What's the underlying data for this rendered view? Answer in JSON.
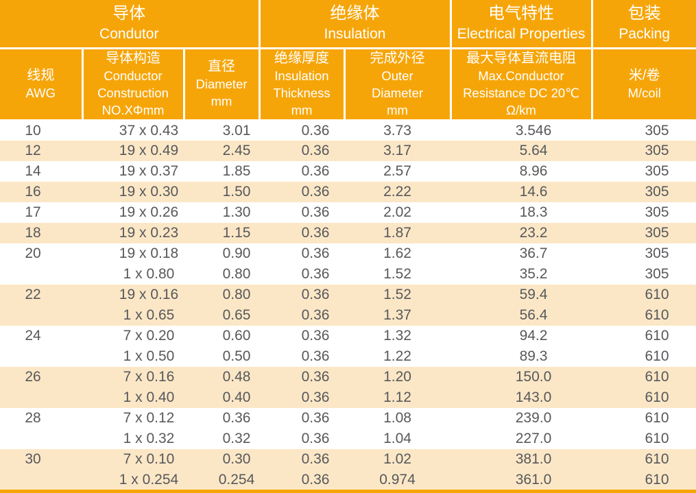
{
  "header": {
    "groups": [
      {
        "zh": "导体",
        "en": "Condutor"
      },
      {
        "zh": "绝缘体",
        "en": "Insulation"
      },
      {
        "zh": "电气特性",
        "en": "Electrical Properties"
      },
      {
        "zh": "包装",
        "en": "Packing"
      }
    ],
    "columns": [
      {
        "id": "awg",
        "lines": [
          "线规",
          "AWG"
        ]
      },
      {
        "id": "construction",
        "lines": [
          "导体构造",
          "Conductor",
          "Construction",
          "NO.XΦmm"
        ]
      },
      {
        "id": "diameter",
        "lines": [
          "直径",
          "Diameter",
          "mm"
        ]
      },
      {
        "id": "insulation_thickness",
        "lines": [
          "绝缘厚度",
          "Insulation",
          "Thickness",
          "mm"
        ]
      },
      {
        "id": "outer_diameter",
        "lines": [
          "完成外径",
          "Outer",
          "Diameter",
          "mm"
        ]
      },
      {
        "id": "resistance",
        "lines": [
          "最大导体直流电阻",
          "Max.Conductor",
          "Resistance DC 20℃",
          "Ω/km"
        ]
      },
      {
        "id": "m_per_coil",
        "lines": [
          "米/卷",
          "M/coil"
        ]
      }
    ]
  },
  "table": {
    "field_names": [
      "awg",
      "construction",
      "diameter",
      "insulation_thickness",
      "outer_diameter",
      "resistance",
      "m_per_coil"
    ],
    "rows": [
      {
        "stripe": false,
        "cells": [
          "10",
          "37 x 0.43",
          "3.01",
          "0.36",
          "3.73",
          "3.546",
          "305"
        ]
      },
      {
        "stripe": true,
        "cells": [
          "12",
          "19 x 0.49",
          "2.45",
          "0.36",
          "3.17",
          "5.64",
          "305"
        ]
      },
      {
        "stripe": false,
        "cells": [
          "14",
          "19 x 0.37",
          "1.85",
          "0.36",
          "2.57",
          "8.96",
          "305"
        ]
      },
      {
        "stripe": true,
        "cells": [
          "16",
          "19 x 0.30",
          "1.50",
          "0.36",
          "2.22",
          "14.6",
          "305"
        ]
      },
      {
        "stripe": false,
        "cells": [
          "17",
          "19 x 0.26",
          "1.30",
          "0.36",
          "2.02",
          "18.3",
          "305"
        ]
      },
      {
        "stripe": true,
        "cells": [
          "18",
          "19 x 0.23",
          "1.15",
          "0.36",
          "1.87",
          "23.2",
          "305"
        ]
      },
      {
        "stripe": false,
        "cells": [
          "20",
          "19 x 0.18",
          "0.90",
          "0.36",
          "1.62",
          "36.7",
          "305"
        ]
      },
      {
        "stripe": false,
        "cells": [
          "",
          "1 x 0.80",
          "0.80",
          "0.36",
          "1.52",
          "35.2",
          "305"
        ]
      },
      {
        "stripe": true,
        "cells": [
          "22",
          "19 x 0.16",
          "0.80",
          "0.36",
          "1.52",
          "59.4",
          "610"
        ]
      },
      {
        "stripe": true,
        "cells": [
          "",
          "1 x 0.65",
          "0.65",
          "0.36",
          "1.37",
          "56.4",
          "610"
        ]
      },
      {
        "stripe": false,
        "cells": [
          "24",
          "7 x 0.20",
          "0.60",
          "0.36",
          "1.32",
          "94.2",
          "610"
        ]
      },
      {
        "stripe": false,
        "cells": [
          "",
          "1 x 0.50",
          "0.50",
          "0.36",
          "1.22",
          "89.3",
          "610"
        ]
      },
      {
        "stripe": true,
        "cells": [
          "26",
          "7 x 0.16",
          "0.48",
          "0.36",
          "1.20",
          "150.0",
          "610"
        ]
      },
      {
        "stripe": true,
        "cells": [
          "",
          "1 x 0.40",
          "0.40",
          "0.36",
          "1.12",
          "143.0",
          "610"
        ]
      },
      {
        "stripe": false,
        "cells": [
          "28",
          "7 x 0.12",
          "0.36",
          "0.36",
          "1.08",
          "239.0",
          "610"
        ]
      },
      {
        "stripe": false,
        "cells": [
          "",
          "1 x 0.32",
          "0.32",
          "0.36",
          "1.04",
          "227.0",
          "610"
        ]
      },
      {
        "stripe": true,
        "cells": [
          "30",
          "7 x 0.10",
          "0.30",
          "0.36",
          "1.02",
          "381.0",
          "610"
        ]
      },
      {
        "stripe": true,
        "cells": [
          "",
          "1 x 0.254",
          "0.254",
          "0.36",
          "0.974",
          "361.0",
          "610"
        ]
      }
    ]
  },
  "colors": {
    "header_orange": "#F6A509",
    "stripe_cream": "#FBE7C6",
    "data_text": "#57585B",
    "header_text": "#FFFFFF"
  }
}
